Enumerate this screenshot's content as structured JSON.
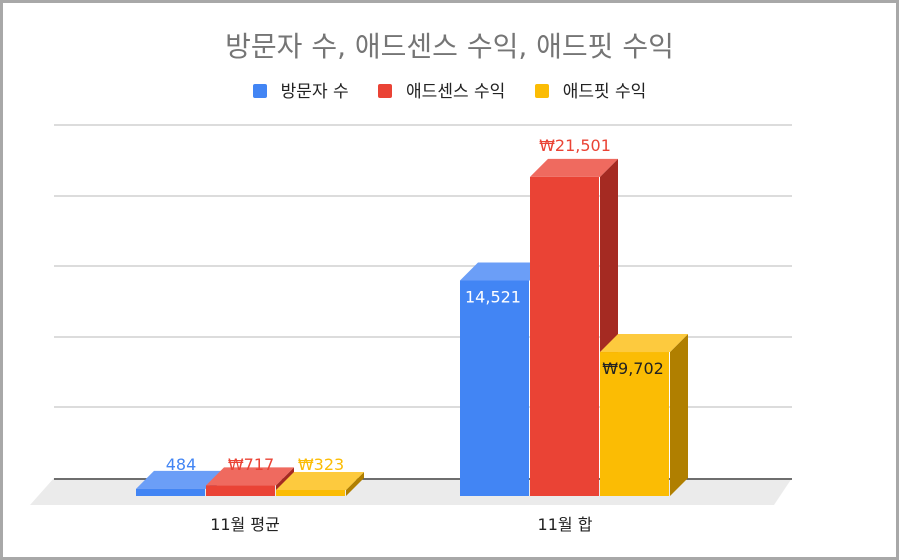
{
  "chart_data": {
    "type": "bar",
    "style": "3d-column",
    "title": "방문자 수, 애드센스 수익, 애드핏 수익",
    "legend_position": "top",
    "categories": [
      "11월 평균",
      "11월 합"
    ],
    "series": [
      {
        "name": "방문자 수",
        "values": [
          484,
          14521
        ],
        "labels": [
          "484",
          "14,521"
        ],
        "color": "#4285f4",
        "side_color": "#2a5fb8",
        "top_color": "#6b9ef7"
      },
      {
        "name": "애드센스 수익",
        "values": [
          717,
          21501
        ],
        "labels": [
          "₩717",
          "₩21,501"
        ],
        "color": "#ea4335",
        "side_color": "#a52a22",
        "top_color": "#ef6a5f"
      },
      {
        "name": "애드핏 수익",
        "values": [
          323,
          9702
        ],
        "labels": [
          "₩323",
          "₩9,702"
        ],
        "color": "#fbbc04",
        "side_color": "#b07f00",
        "top_color": "#fdca3e"
      }
    ],
    "ylim": [
      0,
      25000
    ],
    "grid": true
  }
}
